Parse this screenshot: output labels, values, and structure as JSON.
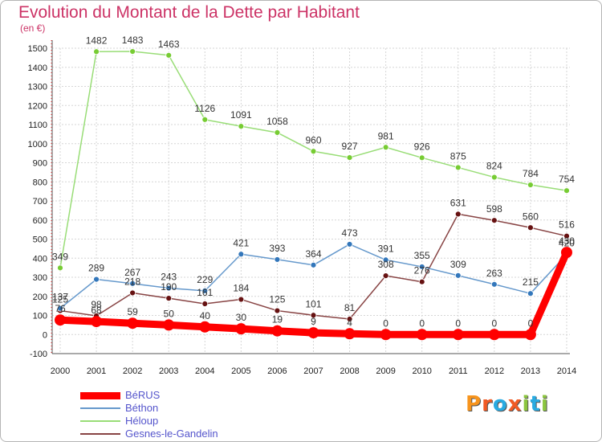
{
  "header": {
    "title": "Evolution du Montant de la Dette par Habitant",
    "subtitle": "(en €)"
  },
  "logo": {
    "text": "Proxiti",
    "letters": [
      "P",
      "r",
      "o",
      "x",
      "i",
      "t",
      "i"
    ],
    "letter_colors": [
      "#f7941d",
      "#f15a24",
      "#29abe2",
      "#f15a24",
      "#8cc63f",
      "#29abe2",
      "#8cc63f"
    ]
  },
  "chart_data": {
    "type": "line",
    "title": "Evolution du Montant de la Dette par Habitant",
    "subtitle": "(en €)",
    "xlabel": "",
    "ylabel": "",
    "x": [
      2000,
      2001,
      2002,
      2003,
      2004,
      2005,
      2006,
      2007,
      2008,
      2009,
      2010,
      2011,
      2012,
      2013,
      2014
    ],
    "x_tick_labels": [
      "2000",
      "2001",
      "2002",
      "2003",
      "2004",
      "2005",
      "2006",
      "2007",
      "2008",
      "2009",
      "2010",
      "2011",
      "2012",
      "2013",
      "2014"
    ],
    "ylim": [
      -100,
      1500
    ],
    "y_ticks": [
      -100,
      0,
      100,
      200,
      300,
      400,
      500,
      600,
      700,
      800,
      900,
      1000,
      1100,
      1200,
      1300,
      1400,
      1500
    ],
    "y_tick_labels": [
      "-100",
      "0",
      "100",
      "200",
      "300",
      "400",
      "500",
      "600",
      "700",
      "800",
      "900",
      "1000",
      "1100",
      "1200",
      "1300",
      "1400",
      "1500"
    ],
    "grid": true,
    "legend_position": "bottom-left",
    "series": [
      {
        "name": "BéRUS",
        "color": "#ff0000",
        "marker_color": "#ff0000",
        "values": [
          76,
          68,
          59,
          50,
          40,
          30,
          19,
          9,
          4,
          0,
          0,
          0,
          0,
          0,
          430
        ],
        "labels": [
          "76",
          "68",
          "59",
          "50",
          "40",
          "30",
          "19",
          "9",
          "4",
          "0",
          "0",
          "0",
          "0",
          "0",
          "430"
        ]
      },
      {
        "name": "Béthon",
        "color": "#6699cc",
        "marker_color": "#3377bb",
        "values": [
          137,
          289,
          267,
          243,
          229,
          421,
          393,
          364,
          473,
          391,
          355,
          309,
          263,
          215,
          420
        ],
        "labels": [
          "137",
          "289",
          "267",
          "243",
          "229",
          "421",
          "393",
          "364",
          "473",
          "391",
          "355",
          "309",
          "263",
          "215",
          "420"
        ]
      },
      {
        "name": "Héloup",
        "color": "#99dd77",
        "marker_color": "#77cc33",
        "values": [
          349,
          1482,
          1483,
          1463,
          1126,
          1091,
          1058,
          960,
          927,
          981,
          926,
          875,
          824,
          784,
          754
        ],
        "labels": [
          "349",
          "1482",
          "1483",
          "1463",
          "1126",
          "1091",
          "1058",
          "960",
          "927",
          "981",
          "926",
          "875",
          "824",
          "784",
          "754"
        ]
      },
      {
        "name": "Gesnes-le-Gandelin",
        "color": "#884444",
        "marker_color": "#661111",
        "values": [
          125,
          98,
          218,
          190,
          161,
          184,
          125,
          101,
          81,
          308,
          276,
          631,
          598,
          560,
          516
        ],
        "labels": [
          "125",
          "98",
          "218",
          "190",
          "161",
          "184",
          "125",
          "101",
          "81",
          "308",
          "276",
          "631",
          "598",
          "560",
          "516"
        ]
      }
    ]
  }
}
